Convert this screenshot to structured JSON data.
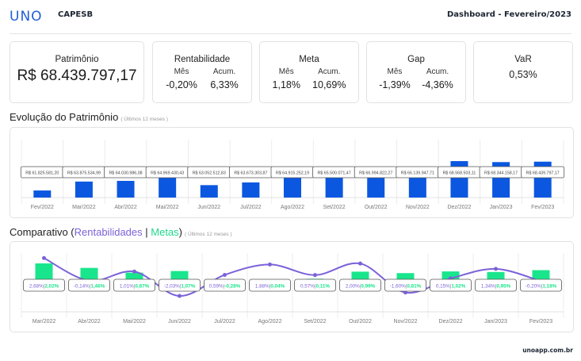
{
  "header": {
    "logo": "UNO",
    "client": "CAPESB",
    "title": "Dashboard - Fevereiro/2023"
  },
  "cards": {
    "patrimonio": {
      "title": "Patrimônio",
      "value": "R$ 68.439.797,17"
    },
    "rentabilidade": {
      "title": "Rentabilidade",
      "mes_label": "Mês",
      "mes": "-0,20%",
      "acum_label": "Acum.",
      "acum": "6,33%"
    },
    "meta": {
      "title": "Meta",
      "mes_label": "Mês",
      "mes": "1,18%",
      "acum_label": "Acum.",
      "acum": "10,69%"
    },
    "gap": {
      "title": "Gap",
      "mes_label": "Mês",
      "mes": "-1,39%",
      "acum_label": "Acum.",
      "acum": "-4,36%"
    },
    "var": {
      "title": "VaR",
      "value": "0,53%"
    }
  },
  "sections": {
    "evolucao": {
      "title": "Evolução do Patrimônio",
      "subtitle": "( Últimos 12 meses )"
    },
    "comparativo": {
      "title_prefix": "Comparativo (",
      "rent": "Rentabilidades",
      "sep": " | ",
      "metas": "Metas",
      "title_suffix": ")",
      "subtitle": "( Últimos 12 meses )"
    }
  },
  "colors": {
    "bar_blue": "#0b57e0",
    "rent_purple": "#7b62d8",
    "meta_green": "#19e68c",
    "logo_blue": "#1f5fd6"
  },
  "chart_data": [
    {
      "type": "bar",
      "title": "Evolução do Patrimônio",
      "categories": [
        "Fev/2022",
        "Mar/2022",
        "Abr/2022",
        "Mai/2022",
        "Jun/2022",
        "Jul/2022",
        "Ago/2022",
        "Set/2022",
        "Out/2022",
        "Nov/2022",
        "Dez/2022",
        "Jan/2023",
        "Fev/2023"
      ],
      "values": [
        61825581.2,
        63875534.99,
        64030986.08,
        64969430.43,
        63052512.83,
        63673303.87,
        64915252.19,
        65500071.47,
        66994822.27,
        66139947.71,
        68568503.11,
        68344158.17,
        68439797.17
      ],
      "labels": [
        "R$ 61.825.581,20",
        "R$ 63.875.534,99",
        "R$ 64.030.986,08",
        "R$ 64.969.430,43",
        "R$ 63.052.512,83",
        "R$ 63.673.303,87",
        "R$ 64.915.252,19",
        "R$ 65.500.071,47",
        "R$ 66.994.822,27",
        "R$ 66.139.947,71",
        "R$ 68.568.503,11",
        "R$ 68.344.158,17",
        "R$ 68.439.797,17"
      ],
      "ylim": [
        60200000,
        73500000
      ],
      "grid": true
    },
    {
      "type": "bar+line",
      "title": "Comparativo (Rentabilidades | Metas)",
      "categories": [
        "Mar/2022",
        "Abr/2022",
        "Mai/2022",
        "Jun/2022",
        "Jul/2022",
        "Ago/2022",
        "Set/2022",
        "Out/2022",
        "Nov/2022",
        "Dez/2022",
        "Jan/2023",
        "Fev/2023"
      ],
      "series": [
        {
          "name": "Rentabilidades",
          "type": "line",
          "values": [
            2.68,
            -0.14,
            1.01,
            -2.03,
            0.59,
            1.88,
            0.57,
            2.0,
            -1.6,
            0.15,
            1.34,
            -0.2
          ]
        },
        {
          "name": "Metas",
          "type": "bar",
          "values": [
            2.02,
            1.46,
            0.87,
            1.07,
            -0.28,
            0.04,
            0.11,
            0.99,
            0.81,
            1.02,
            0.95,
            1.18
          ]
        }
      ],
      "labels_rent": [
        "2,68%",
        "-0,14%",
        "1,01%",
        "-2,03%",
        "0,59%",
        "1,88%",
        "0,57%",
        "2,00%",
        "-1,60%",
        "0,15%",
        "1,34%",
        "-0,20%"
      ],
      "labels_meta": [
        "2,02%",
        "1,46%",
        "0,87%",
        "1,07%",
        "-0,28%",
        "0,04%",
        "0,11%",
        "0,99%",
        "0,81%",
        "1,02%",
        "0,95%",
        "1,18%"
      ],
      "ylim": [
        -4.0,
        3.3
      ],
      "grid": true
    }
  ],
  "footer": {
    "site": "unoapp.com.br"
  }
}
